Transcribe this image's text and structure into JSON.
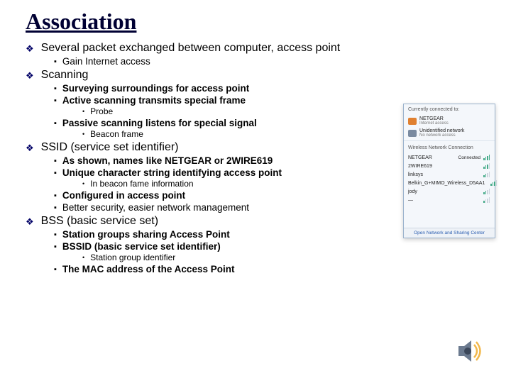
{
  "title": "Association",
  "colors": {
    "title": "#000033",
    "diamond": "#000066",
    "text": "#000000",
    "panel_bg": "#f4f7fb",
    "panel_border": "#9ab2cc",
    "link": "#2a5db0"
  },
  "items": [
    {
      "text": "Several packet exchanged between computer, access point",
      "sub": [
        {
          "text": "Gain Internet access",
          "bold": false
        }
      ]
    },
    {
      "text": "Scanning",
      "sub": [
        {
          "text": "Surveying surroundings for access point",
          "bold": true
        },
        {
          "text": "Active scanning transmits special frame",
          "bold": true,
          "sub": [
            {
              "text": "Probe"
            }
          ]
        },
        {
          "text": "Passive scanning listens for special signal",
          "bold": true,
          "sub": [
            {
              "text": "Beacon frame"
            }
          ]
        }
      ]
    },
    {
      "text": "SSID (service set identifier)",
      "sub": [
        {
          "text": "As shown, names like NETGEAR or 2WIRE619",
          "bold": true
        },
        {
          "text": "Unique character string identifying access point",
          "bold": true,
          "sub": [
            {
              "text": "In beacon fame information"
            }
          ]
        },
        {
          "text": "Configured in access point",
          "bold": true
        },
        {
          "text": "Better security, easier network management",
          "bold": false
        }
      ]
    },
    {
      "text": "BSS (basic service set)",
      "sub": [
        {
          "text": "Station groups sharing Access Point",
          "bold": true
        },
        {
          "text": "BSSID (basic service set identifier)",
          "bold": true,
          "sub": [
            {
              "text": "Station group identifier"
            }
          ]
        },
        {
          "text": "The MAC address of the Access Point",
          "bold": true
        }
      ]
    }
  ],
  "wifi": {
    "header": "Currently connected to:",
    "connected": [
      {
        "name": "NETGEAR",
        "subtitle": "Internet access",
        "icon": "netgear"
      },
      {
        "name": "Unidentified network",
        "subtitle": "No network access",
        "icon": "unknown"
      }
    ],
    "section2": "Wireless Network Connection",
    "networks": [
      {
        "name": "NETGEAR",
        "state": "Connected",
        "strength": 4
      },
      {
        "name": "2WIRE619",
        "state": "",
        "strength": 3
      },
      {
        "name": "linksys",
        "state": "",
        "strength": 2
      },
      {
        "name": "Belkin_G+MIMO_Wireless_D5AA1",
        "state": "",
        "strength": 3
      },
      {
        "name": "jody",
        "state": "",
        "strength": 2
      },
      {
        "name": "—",
        "state": "",
        "strength": 1
      }
    ],
    "footer": "Open Network and Sharing Center"
  },
  "speaker": {
    "body": "#6b7a8f",
    "membrane": "#3b475a",
    "wave": "#f2b84b"
  }
}
